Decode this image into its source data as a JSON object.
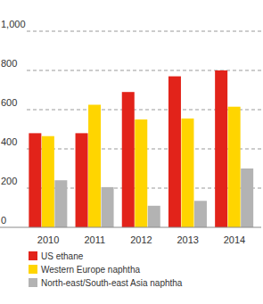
{
  "chart_data": {
    "type": "bar",
    "categories": [
      "2010",
      "2011",
      "2012",
      "2013",
      "2014"
    ],
    "series": [
      {
        "name": "US ethane",
        "color": "#e2231a",
        "values": [
          480,
          480,
          690,
          770,
          800
        ]
      },
      {
        "name": "Western Europe naphtha",
        "color": "#ffd500",
        "values": [
          465,
          625,
          550,
          555,
          615
        ]
      },
      {
        "name": "North-east/South-east Asia naphtha",
        "color": "#b3b3b3",
        "values": [
          240,
          205,
          110,
          135,
          300
        ]
      }
    ],
    "ylim": [
      0,
      1000
    ],
    "yticks": [
      0,
      200,
      400,
      600,
      800,
      {
        "value": 1000,
        "label": "1,000"
      }
    ],
    "grid": true,
    "legend": "bottom"
  }
}
